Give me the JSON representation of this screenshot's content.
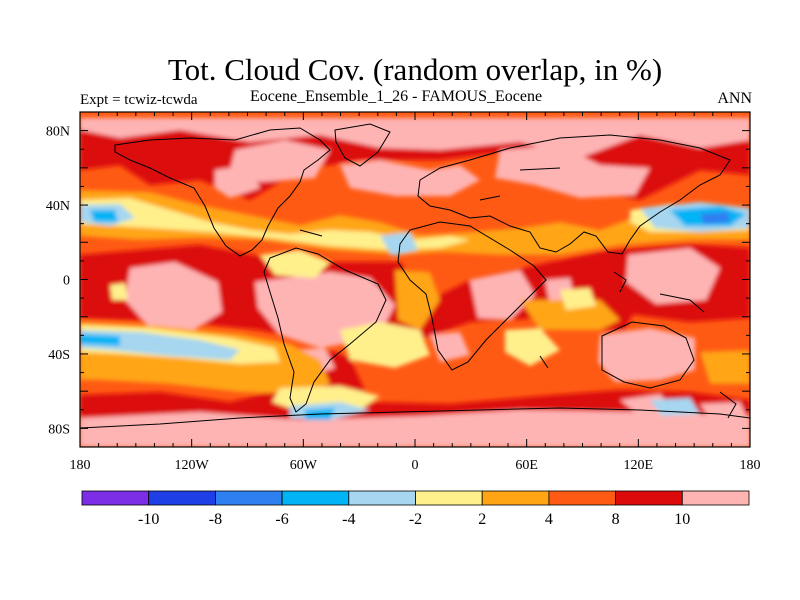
{
  "title": "Tot. Cloud Cov. (random overlap, in %)",
  "left_subtitle": "Expt = tcwiz-tcwda",
  "center_subtitle": "Eocene_Ensemble_1_26 - FAMOUS_Eocene",
  "right_subtitle": "ANN",
  "x_ticks": [
    "180",
    "120W",
    "60W",
    "0",
    "60E",
    "120E",
    "180"
  ],
  "y_ticks": [
    "80N",
    "40N",
    "0",
    "40S",
    "80S"
  ],
  "colorbar": {
    "colors": [
      "#7b2ee6",
      "#1e3fe6",
      "#2e7ff0",
      "#00b4f5",
      "#a6d6f0",
      "#fff08c",
      "#ffa514",
      "#ff5a14",
      "#dc0a0a",
      "#ffb4b4"
    ],
    "labels": [
      "-10",
      "-8",
      "-6",
      "-4",
      "-2",
      "2",
      "4",
      "8",
      "10"
    ]
  },
  "fill_colors": {
    "base": "#ff5a14",
    "high": "#ffb4b4",
    "strong": "#dc0a0a",
    "mid": "#ffa514",
    "low": "#fff08c",
    "neg": "#a6d6f0",
    "neg2": "#00b4f5",
    "neg3": "#2e7ff0",
    "coast": "#000000"
  }
}
